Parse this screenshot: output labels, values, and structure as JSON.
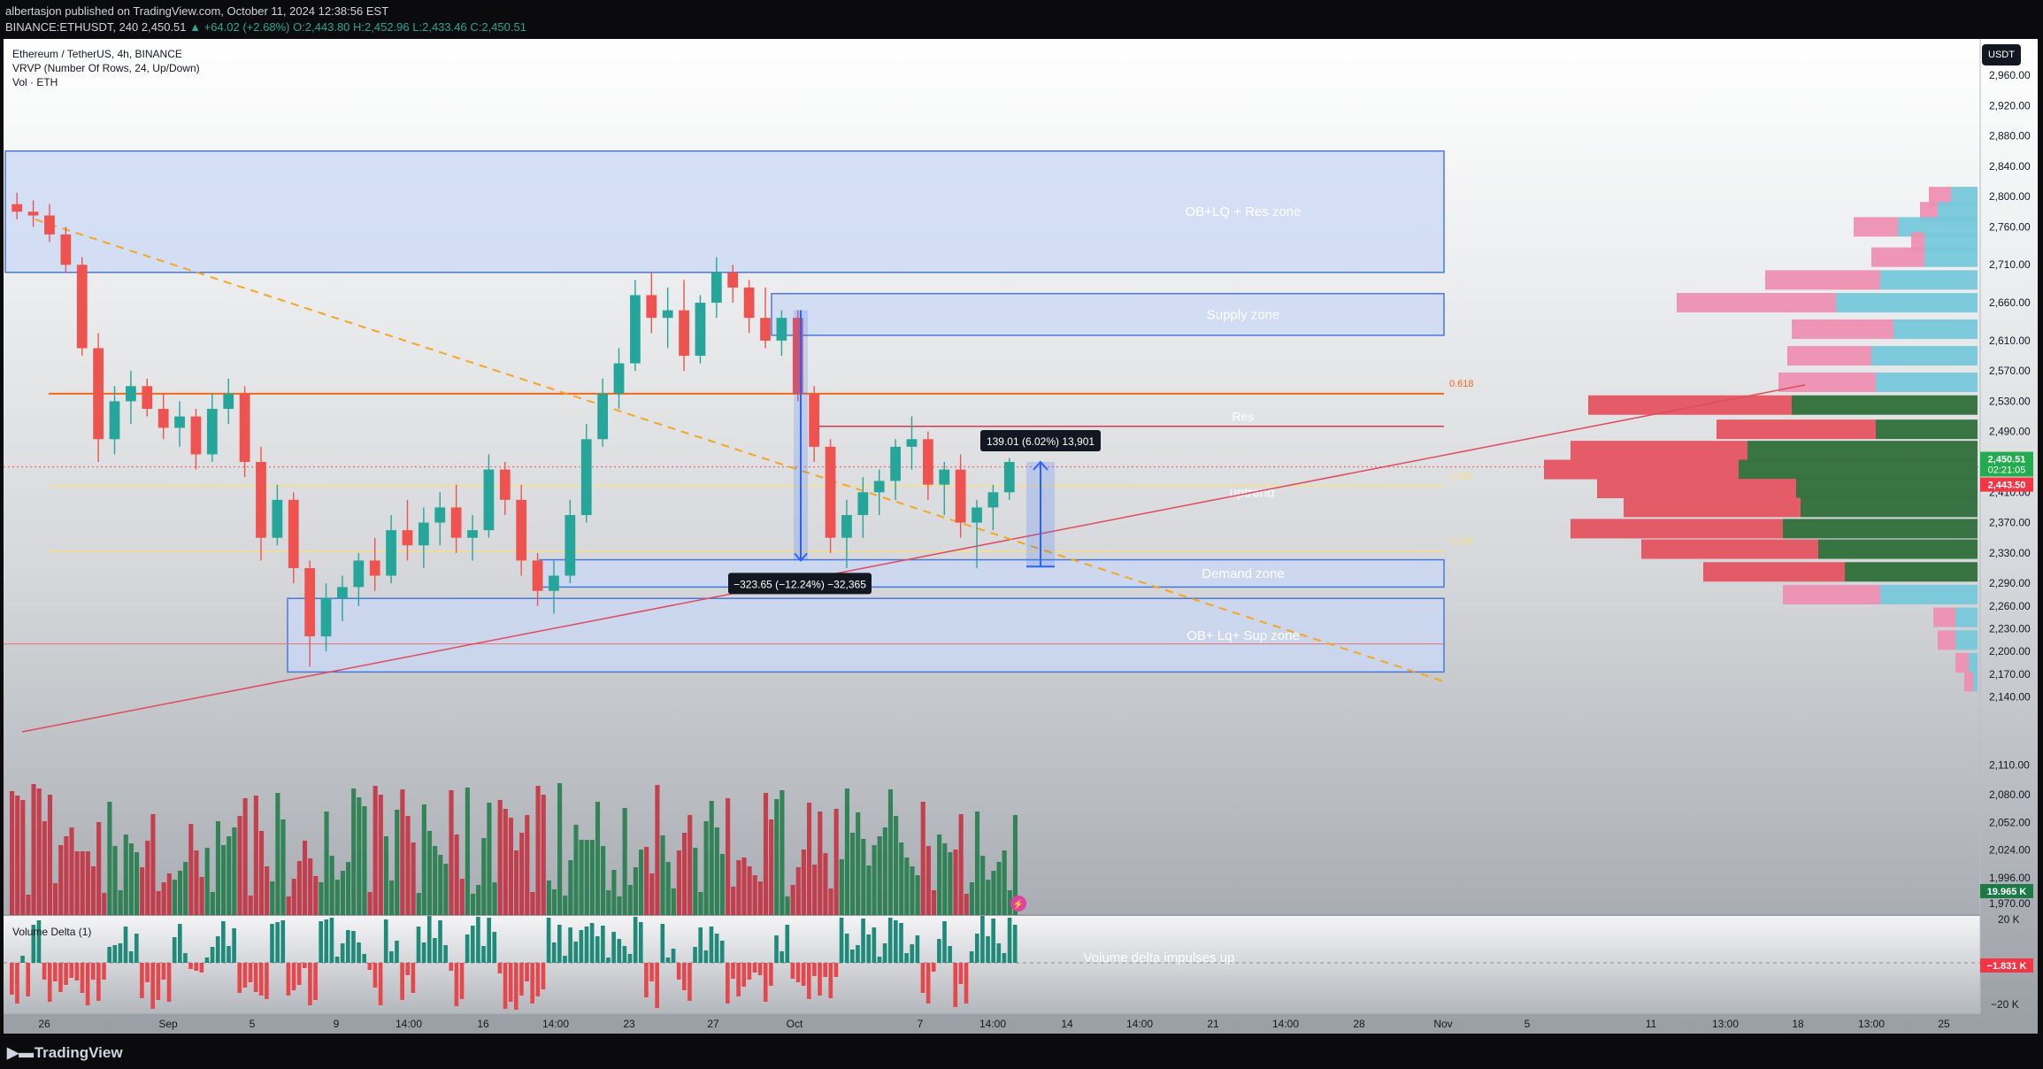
{
  "header": {
    "published": "albertasjon published on TradingView.com, October 11, 2024 12:38:56 EST",
    "symbol": "BINANCE:ETHUSDT, 240",
    "last": "2,450.51",
    "change": "▲ +64.02 (+2.68%)",
    "open": "O:2,443.80",
    "high": "H:2,452.96",
    "low": "L:2,433.46",
    "close": "C:2,450.51"
  },
  "legend": {
    "title": "Ethereum / TetherUS, 4h, BINANCE",
    "vrvp": "VRVP (Number Of Rows, 24, Up/Down)",
    "vol": "Vol · ETH",
    "volume_delta": "Volume Delta (1)"
  },
  "currency_button": "USDT",
  "brand": "TradingView",
  "colors": {
    "up": "#26a69a",
    "down": "#ef5350",
    "up_volume": "#1b7a45",
    "down_volume": "#c62a3a",
    "zone_fill": "#c9d8f5",
    "zone_border": "#4a78d8",
    "fib_0618": "#f06a1b",
    "trendline_red": "#e04a5e",
    "trendline_dashed": "#f5a623",
    "measure": "#2962ff",
    "badge_green": "#22ab4f",
    "badge_red": "#f23645"
  },
  "chart_data": {
    "type": "candlestick",
    "symbol": "ETHUSDT",
    "exchange": "BINANCE",
    "timeframe": "4h",
    "price_axis": {
      "ticks": [
        "2,960.00",
        "2,920.00",
        "2,880.00",
        "2,840.00",
        "2,800.00",
        "2,760.00",
        "2,710.00",
        "2,660.00",
        "2,610.00",
        "2,570.00",
        "2,530.00",
        "2,490.00",
        "2,450.00",
        "2,410.00",
        "2,370.00",
        "2,330.00",
        "2,290.00",
        "2,260.00",
        "2,230.00",
        "2,200.00",
        "2,170.00",
        "2,140.00",
        "2,110.00",
        "2,080.00",
        "2,052.00",
        "2,024.00",
        "1,996.00",
        "1,970.00"
      ],
      "ylim": [
        1960,
        2980
      ]
    },
    "x_axis": {
      "ticks": [
        "26",
        "Sep",
        "5",
        "9",
        "14:00",
        "16",
        "14:00",
        "23",
        "27",
        "Oct",
        "7",
        "14:00",
        "14",
        "14:00",
        "21",
        "14:00",
        "28",
        "Nov",
        "5",
        "11",
        "13:00",
        "18",
        "13:00",
        "25"
      ]
    },
    "price_badges": [
      {
        "label": "2,450.51",
        "sub": "02:21:05",
        "color": "green"
      },
      {
        "label": "2,443.50",
        "color": "red"
      },
      {
        "label": "19.965 K",
        "color": "green"
      }
    ],
    "zones": [
      {
        "label": "OB+LQ + Res zone",
        "top": 2860,
        "bottom": 2700
      },
      {
        "label": "Supply zone",
        "top": 2672,
        "bottom": 2617
      },
      {
        "label": "Demand zone",
        "top": 2321,
        "bottom": 2285
      },
      {
        "label": "OB+ Lq+ Sup zone",
        "top": 2270,
        "bottom": 2173
      }
    ],
    "levels": [
      {
        "label": "Res",
        "price": 2497
      },
      {
        "label": "0.618",
        "price": 2540
      },
      {
        "label": "0.382",
        "price": 2418
      },
      {
        "label": "0.236",
        "price": 2332
      }
    ],
    "annotations": {
      "uptrend": "uptrend",
      "measure_down": "−323.65 (−12.24%) −32,365",
      "measure_up": "139.01 (6.02%) 13,901"
    },
    "candles": [
      [
        2790,
        2805,
        2770,
        2780
      ],
      [
        2780,
        2795,
        2760,
        2775
      ],
      [
        2775,
        2790,
        2740,
        2750
      ],
      [
        2750,
        2760,
        2700,
        2710
      ],
      [
        2710,
        2720,
        2590,
        2600
      ],
      [
        2600,
        2620,
        2450,
        2480
      ],
      [
        2480,
        2550,
        2460,
        2530
      ],
      [
        2530,
        2570,
        2500,
        2550
      ],
      [
        2550,
        2560,
        2510,
        2520
      ],
      [
        2520,
        2540,
        2480,
        2495
      ],
      [
        2495,
        2530,
        2470,
        2510
      ],
      [
        2510,
        2520,
        2440,
        2460
      ],
      [
        2460,
        2540,
        2450,
        2520
      ],
      [
        2520,
        2560,
        2500,
        2540
      ],
      [
        2540,
        2550,
        2430,
        2450
      ],
      [
        2450,
        2470,
        2320,
        2350
      ],
      [
        2350,
        2420,
        2340,
        2400
      ],
      [
        2400,
        2410,
        2290,
        2310
      ],
      [
        2310,
        2320,
        2180,
        2220
      ],
      [
        2220,
        2290,
        2200,
        2270
      ],
      [
        2270,
        2300,
        2240,
        2285
      ],
      [
        2285,
        2330,
        2260,
        2320
      ],
      [
        2320,
        2350,
        2280,
        2300
      ],
      [
        2300,
        2380,
        2290,
        2360
      ],
      [
        2360,
        2400,
        2320,
        2340
      ],
      [
        2340,
        2390,
        2310,
        2370
      ],
      [
        2370,
        2410,
        2340,
        2390
      ],
      [
        2390,
        2420,
        2330,
        2350
      ],
      [
        2350,
        2380,
        2320,
        2360
      ],
      [
        2360,
        2460,
        2350,
        2440
      ],
      [
        2440,
        2450,
        2380,
        2400
      ],
      [
        2400,
        2420,
        2300,
        2320
      ],
      [
        2320,
        2330,
        2260,
        2280
      ],
      [
        2280,
        2320,
        2250,
        2300
      ],
      [
        2300,
        2400,
        2290,
        2380
      ],
      [
        2380,
        2500,
        2370,
        2480
      ],
      [
        2480,
        2560,
        2470,
        2540
      ],
      [
        2540,
        2600,
        2520,
        2580
      ],
      [
        2580,
        2690,
        2570,
        2670
      ],
      [
        2670,
        2700,
        2620,
        2640
      ],
      [
        2640,
        2680,
        2600,
        2650
      ],
      [
        2650,
        2690,
        2570,
        2590
      ],
      [
        2590,
        2670,
        2580,
        2660
      ],
      [
        2660,
        2720,
        2640,
        2700
      ],
      [
        2700,
        2710,
        2660,
        2680
      ],
      [
        2680,
        2690,
        2620,
        2640
      ],
      [
        2640,
        2680,
        2600,
        2610
      ],
      [
        2610,
        2650,
        2590,
        2640
      ],
      [
        2640,
        2650,
        2530,
        2540
      ],
      [
        2540,
        2550,
        2450,
        2470
      ],
      [
        2470,
        2480,
        2330,
        2350
      ],
      [
        2350,
        2400,
        2310,
        2380
      ],
      [
        2380,
        2430,
        2350,
        2410
      ],
      [
        2410,
        2440,
        2380,
        2425
      ],
      [
        2425,
        2480,
        2400,
        2470
      ],
      [
        2470,
        2510,
        2440,
        2480
      ],
      [
        2480,
        2490,
        2400,
        2420
      ],
      [
        2420,
        2450,
        2380,
        2440
      ],
      [
        2440,
        2460,
        2350,
        2370
      ],
      [
        2370,
        2400,
        2310,
        2390
      ],
      [
        2390,
        2420,
        2360,
        2410
      ],
      [
        2410,
        2455,
        2400,
        2450
      ]
    ],
    "volume_profile": [
      {
        "price": 2800,
        "up": 30,
        "down": 25
      },
      {
        "price": 2780,
        "up": 45,
        "down": 20
      },
      {
        "price": 2760,
        "up": 90,
        "down": 50
      },
      {
        "price": 2740,
        "up": 60,
        "down": 15
      },
      {
        "price": 2720,
        "up": 60,
        "down": 60
      },
      {
        "price": 2690,
        "up": 110,
        "down": 130
      },
      {
        "price": 2660,
        "up": 160,
        "down": 180
      },
      {
        "price": 2625,
        "up": 95,
        "down": 115
      },
      {
        "price": 2590,
        "up": 120,
        "down": 95
      },
      {
        "price": 2555,
        "up": 115,
        "down": 110
      },
      {
        "price": 2525,
        "up": 210,
        "down": 230
      },
      {
        "price": 2493,
        "up": 115,
        "down": 180
      },
      {
        "price": 2465,
        "up": 260,
        "down": 200
      },
      {
        "price": 2440,
        "up": 270,
        "down": 220
      },
      {
        "price": 2415,
        "up": 205,
        "down": 225
      },
      {
        "price": 2390,
        "up": 200,
        "down": 200
      },
      {
        "price": 2362,
        "up": 220,
        "down": 240
      },
      {
        "price": 2335,
        "up": 180,
        "down": 200
      },
      {
        "price": 2305,
        "up": 150,
        "down": 160
      },
      {
        "price": 2275,
        "up": 110,
        "down": 110
      },
      {
        "price": 2245,
        "up": 25,
        "down": 25
      },
      {
        "price": 2215,
        "up": 25,
        "down": 20
      },
      {
        "price": 2185,
        "up": 10,
        "down": 15
      },
      {
        "price": 2160,
        "up": 5,
        "down": 10
      }
    ],
    "volume_axis": {
      "ticks": [
        "20 K",
        "−20 K"
      ],
      "badge": "−1.831 K"
    },
    "volume_delta_label": "Volume delta impulses up"
  }
}
